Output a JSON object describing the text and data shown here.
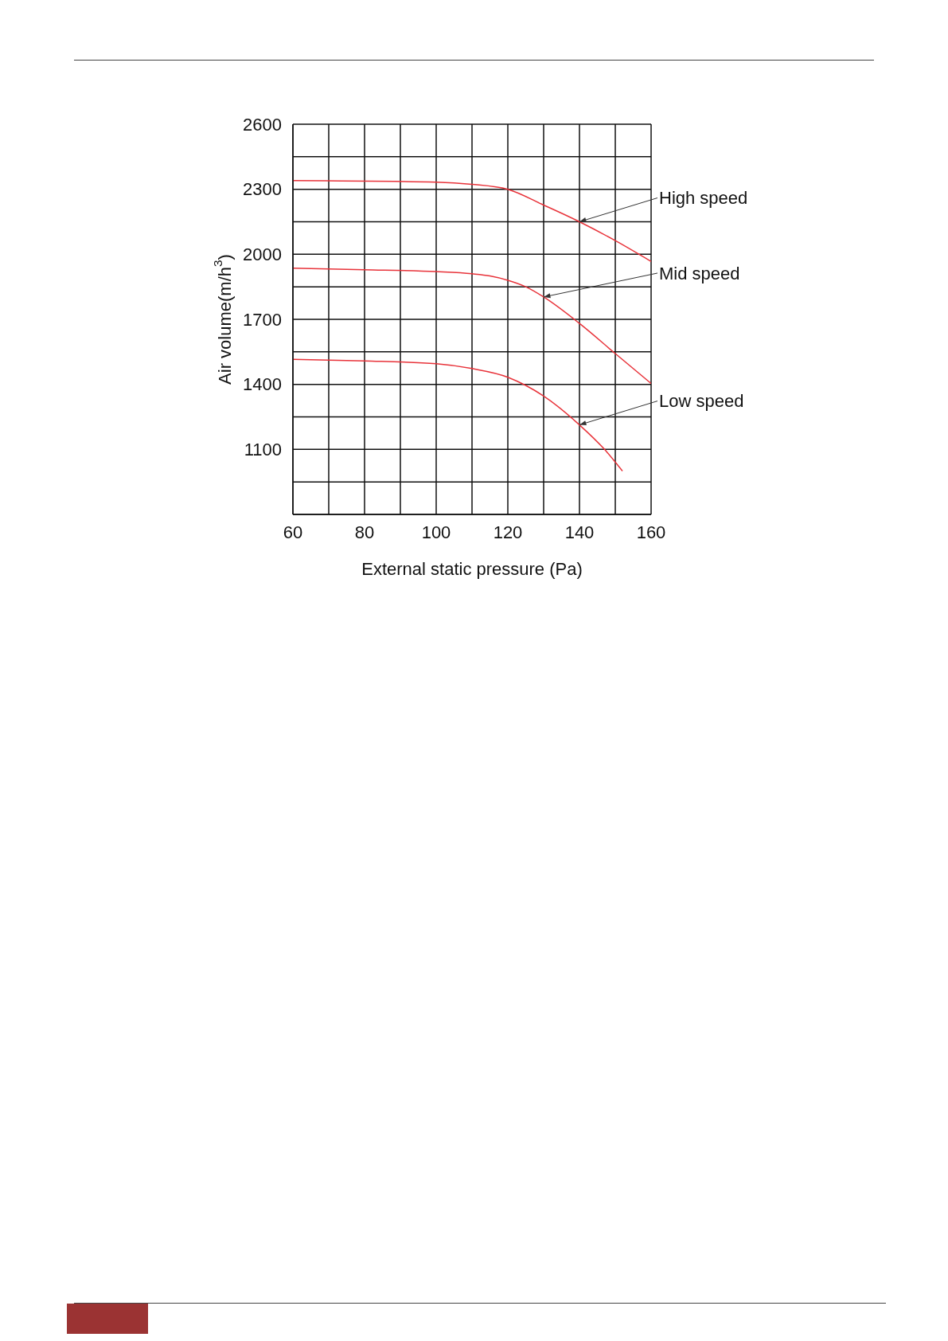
{
  "chart_data": {
    "type": "line",
    "xlabel": "External static pressure (Pa)",
    "ylabel": "Air volume(m/h$^{3}$)",
    "xlim": [
      60,
      160
    ],
    "xticks": [
      60,
      {
        "value": 70,
        "label": null
      },
      80,
      {
        "value": 90,
        "label": null
      },
      100,
      {
        "value": 110,
        "label": null
      },
      120,
      {
        "value": 130,
        "label": null
      },
      140,
      {
        "value": 150,
        "label": null
      },
      160
    ],
    "ylim": [
      800,
      2600
    ],
    "yticks": [
      {
        "value": 800,
        "label": null
      },
      {
        "value": 950,
        "label": null
      },
      1100,
      {
        "value": 1250,
        "label": null
      },
      1400,
      {
        "value": 1550,
        "label": null
      },
      1700,
      {
        "value": 1850,
        "label": null
      },
      2000,
      {
        "value": 2150,
        "label": null
      },
      2300,
      {
        "value": 2450,
        "label": null
      },
      2600
    ],
    "grid": true,
    "marker": "none",
    "line_style": "solid",
    "series": [
      {
        "name": "High speed",
        "color": "#e8333a",
        "x": [
          60,
          100,
          110,
          120,
          130,
          140,
          150,
          160
        ],
        "values": [
          2340,
          2333,
          2323,
          2300,
          2227,
          2150,
          2063,
          1967
        ]
      },
      {
        "name": "Mid speed",
        "color": "#e8333a",
        "x": [
          60,
          80,
          100,
          110,
          115,
          120,
          125,
          130,
          140,
          150,
          160
        ],
        "values": [
          1936,
          1929,
          1920,
          1910,
          1900,
          1880,
          1850,
          1803,
          1681,
          1542,
          1404
        ]
      },
      {
        "name": "Low speed",
        "color": "#e8333a",
        "x": [
          60,
          80,
          100,
          110,
          120,
          125,
          130,
          140,
          147,
          152
        ],
        "values": [
          1515,
          1508,
          1495,
          1473,
          1433,
          1395,
          1346,
          1213,
          1100,
          1000
        ]
      }
    ]
  }
}
